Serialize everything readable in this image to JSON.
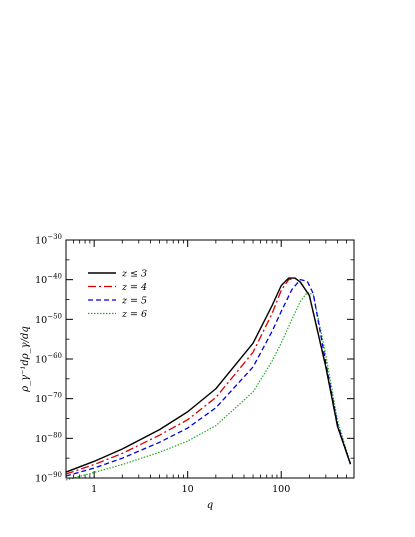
{
  "chart_data": {
    "type": "line",
    "xscale": "log",
    "yscale": "log",
    "xlim": [
      0.5,
      600
    ],
    "ylim": [
      1e-90,
      1e-30
    ],
    "xlabel": "q",
    "ylabel": "ρ_γ⁻¹dρ_γ/dq",
    "x_ticks": [
      {
        "value": 1,
        "label": "1"
      },
      {
        "value": 10,
        "label": "10"
      },
      {
        "value": 100,
        "label": "100"
      }
    ],
    "y_ticks": [
      {
        "exp": -90,
        "base": "10",
        "sup": "−90"
      },
      {
        "exp": -80,
        "base": "10",
        "sup": "−80"
      },
      {
        "exp": -70,
        "base": "10",
        "sup": "−70"
      },
      {
        "exp": -60,
        "base": "10",
        "sup": "−60"
      },
      {
        "exp": -50,
        "base": "10",
        "sup": "−50"
      },
      {
        "exp": -40,
        "base": "10",
        "sup": "−40"
      },
      {
        "exp": -30,
        "base": "10",
        "sup": "−30"
      }
    ],
    "legend_position": "top-left",
    "series": [
      {
        "name": "z ≤ 3",
        "color": "#000000",
        "dash": "",
        "width": 1.4,
        "x": [
          0.5,
          1,
          2,
          5,
          10,
          20,
          50,
          80,
          100,
          120,
          140,
          160,
          200,
          300,
          400,
          550
        ],
        "log10y": [
          -88.5,
          -85.8,
          -82.7,
          -77.8,
          -73.3,
          -67.5,
          -56.0,
          -46.5,
          -41.5,
          -39.6,
          -39.6,
          -40.6,
          -44.0,
          -62.0,
          -77.0,
          -86.5
        ]
      },
      {
        "name": "z = 4",
        "color": "#dd0000",
        "dash": "8,3,2,3",
        "width": 1.3,
        "x": [
          0.5,
          1,
          2,
          5,
          10,
          20,
          50,
          80,
          100,
          120,
          140,
          160,
          200,
          300,
          400,
          550
        ],
        "log10y": [
          -89.0,
          -86.6,
          -83.8,
          -79.2,
          -75.3,
          -69.7,
          -58.3,
          -48.5,
          -42.7,
          -40.0,
          -39.6,
          -40.6,
          -44.0,
          -62.0,
          -77.0,
          -86.5
        ]
      },
      {
        "name": "z = 5",
        "color": "#0000dd",
        "dash": "5,3",
        "width": 1.3,
        "x": [
          0.5,
          1,
          2,
          5,
          10,
          20,
          50,
          80,
          100,
          130,
          160,
          190,
          220,
          300,
          400,
          550
        ],
        "log10y": [
          -89.5,
          -87.5,
          -85.0,
          -81.0,
          -77.4,
          -72.3,
          -62.0,
          -53.0,
          -48.0,
          -42.5,
          -40.0,
          -40.4,
          -43.5,
          -61.0,
          -76.5,
          -86.5
        ]
      },
      {
        "name": "z = 6",
        "color": "#22aa22",
        "dash": "1.5,1.5",
        "width": 1.2,
        "x": [
          0.5,
          1,
          2,
          5,
          10,
          20,
          50,
          80,
          100,
          130,
          160,
          190,
          220,
          300,
          400,
          550
        ],
        "log10y": [
          -90.5,
          -88.6,
          -86.6,
          -83.5,
          -80.7,
          -76.8,
          -68.3,
          -60.5,
          -56.0,
          -50.0,
          -45.5,
          -43.2,
          -43.8,
          -59.0,
          -75.5,
          -86.5
        ]
      }
    ]
  }
}
